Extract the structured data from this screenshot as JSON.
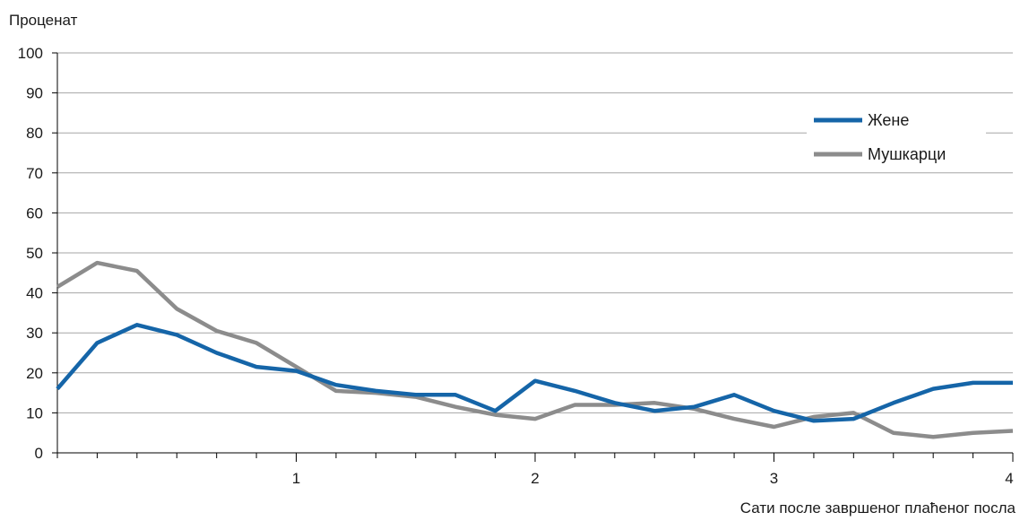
{
  "chart_data": {
    "type": "line",
    "ylabel": "Проценат",
    "xlabel": "Сати после завршеног плаћеног посла",
    "xlim": [
      0,
      4
    ],
    "ylim": [
      0,
      100
    ],
    "yticks": [
      0,
      10,
      20,
      30,
      40,
      50,
      60,
      70,
      80,
      90,
      100
    ],
    "xticks": [
      1,
      2,
      3,
      4
    ],
    "x": [
      0,
      0.1667,
      0.3333,
      0.5,
      0.6667,
      0.8333,
      1.0,
      1.1667,
      1.3333,
      1.5,
      1.6667,
      1.8333,
      2.0,
      2.1667,
      2.3333,
      2.5,
      2.6667,
      2.8333,
      3.0,
      3.1667,
      3.3333,
      3.5,
      3.6667,
      3.8333,
      4.0
    ],
    "grid": "horizontal",
    "legend_position": "top-right",
    "series": [
      {
        "name": "Жене",
        "color": "#1565a8",
        "values": [
          16,
          27.5,
          32,
          29.5,
          25,
          21.5,
          20.5,
          17,
          15.5,
          14.5,
          14.5,
          10.5,
          18,
          15.5,
          12.5,
          10.5,
          11.5,
          14.5,
          10.5,
          8,
          8.5,
          12.5,
          16,
          17.5,
          17.5
        ]
      },
      {
        "name": "Мушкарци",
        "color": "#8c8c8c",
        "values": [
          41.5,
          47.5,
          45.5,
          36,
          30.5,
          27.5,
          21.5,
          15.5,
          15,
          14,
          11.5,
          9.5,
          8.5,
          12,
          12,
          12.5,
          11,
          8.5,
          6.5,
          9,
          10,
          5,
          4,
          5,
          5.5
        ]
      }
    ]
  }
}
